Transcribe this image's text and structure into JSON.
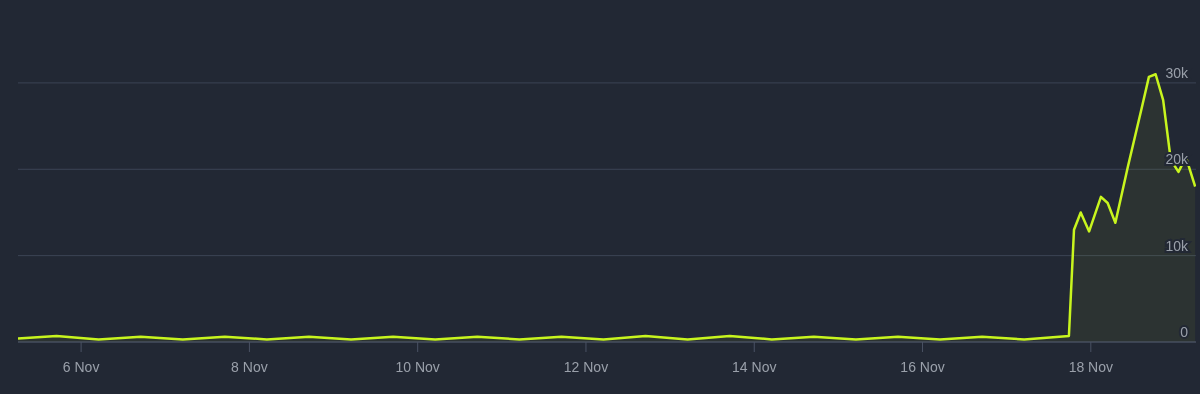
{
  "chart_data": {
    "type": "area",
    "color": "#c8f51e",
    "grid": "y",
    "marker": "none",
    "line_style": "solid",
    "x": [
      "--11-05T06:00",
      "--11-05T17:00",
      "--11-06T05:00",
      "--11-06T17:00",
      "--11-07T05:00",
      "--11-07T17:00",
      "--11-08T05:00",
      "--11-08T17:00",
      "--11-09T05:00",
      "--11-09T17:00",
      "--11-10T05:00",
      "--11-10T17:00",
      "--11-11T05:00",
      "--11-11T17:00",
      "--11-12T05:00",
      "--11-12T17:00",
      "--11-13T05:00",
      "--11-13T17:00",
      "--11-14T05:00",
      "--11-14T17:00",
      "--11-15T05:00",
      "--11-15T17:00",
      "--11-16T05:00",
      "--11-16T17:00",
      "--11-17T05:00",
      "--11-17T17:45",
      "--11-17T19:12",
      "--11-17T21:07",
      "--11-17T23:31",
      "--11-18T02:53",
      "--11-18T04:48",
      "--11-18T07:00",
      "--11-18T10:34",
      "--11-18T14:24",
      "--11-18T16:34",
      "--11-18T18:29",
      "--11-18T20:38",
      "--11-18T22:48",
      "--11-19T01:00",
      "--11-19T03:07",
      "--11-19T05:46"
    ],
    "values": [
      400,
      700,
      300,
      600,
      300,
      600,
      300,
      600,
      300,
      600,
      300,
      600,
      300,
      600,
      300,
      700,
      300,
      700,
      300,
      600,
      300,
      600,
      300,
      600,
      300,
      700,
      13000,
      15000,
      12800,
      16800,
      16100,
      13800,
      20300,
      26900,
      30700,
      31000,
      28000,
      21100,
      19700,
      21400,
      18000
    ],
    "xlim": [
      "--11-05T06:00",
      "--11-19T06:00"
    ],
    "xticks": [
      {
        "value": "--11-06",
        "label": "6 Nov"
      },
      {
        "value": "--11-08",
        "label": "8 Nov"
      },
      {
        "value": "--11-10",
        "label": "10 Nov"
      },
      {
        "value": "--11-12",
        "label": "12 Nov"
      },
      {
        "value": "--11-14",
        "label": "14 Nov"
      },
      {
        "value": "--11-16",
        "label": "16 Nov"
      },
      {
        "value": "--11-18",
        "label": "18 Nov"
      }
    ],
    "ylim": [
      0,
      39600
    ],
    "yticks": [
      0,
      {
        "value": 10000,
        "label": "10k"
      },
      {
        "value": 20000,
        "label": "20k"
      },
      {
        "value": 30000,
        "label": "30k"
      }
    ]
  }
}
